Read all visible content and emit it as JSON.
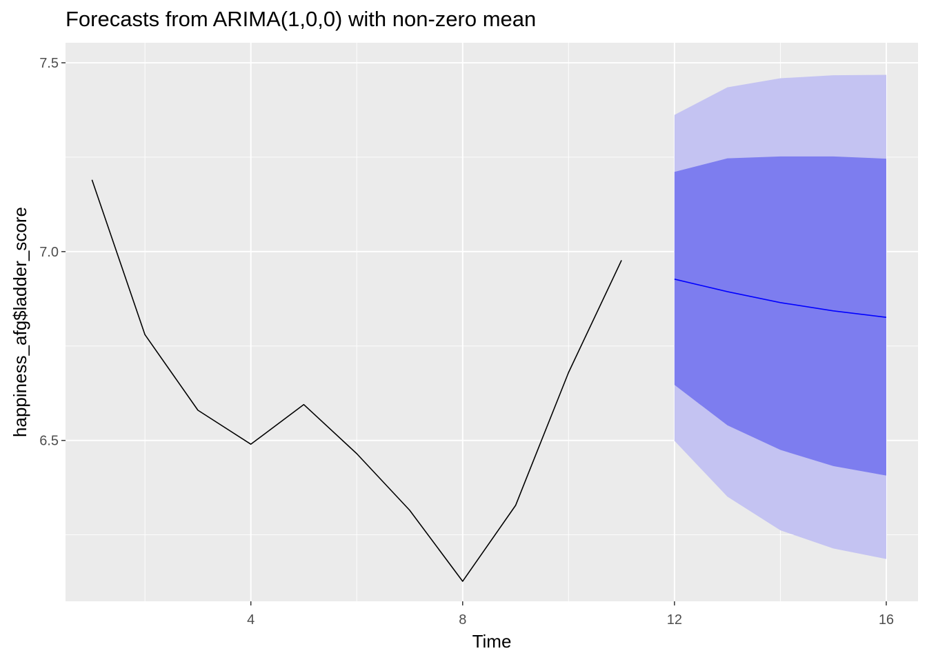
{
  "chart_data": {
    "type": "line",
    "title": "Forecasts from ARIMA(1,0,0) with non-zero mean",
    "xlabel": "Time",
    "ylabel": "happiness_afg$ladder_score",
    "xlim": [
      0.5,
      16.6
    ],
    "ylim": [
      6.074,
      7.553
    ],
    "x_ticks": [
      4,
      8,
      12,
      16
    ],
    "x_tick_labels": [
      "4",
      "8",
      "12",
      "16"
    ],
    "y_ticks": [
      6.5,
      7.0,
      7.5
    ],
    "y_tick_labels": [
      "6.5",
      "7.0",
      "7.5"
    ],
    "grid": true,
    "series": [
      {
        "role": "observed",
        "color": "#000000",
        "x": [
          1,
          2,
          3,
          4,
          5,
          6,
          7,
          8,
          9,
          10,
          11
        ],
        "y": [
          7.19,
          6.78,
          6.58,
          6.49,
          6.595,
          6.465,
          6.315,
          6.127,
          6.328,
          6.68,
          6.977
        ]
      },
      {
        "role": "forecast",
        "color": "#0000ff",
        "x": [
          12,
          13,
          14,
          15,
          16
        ],
        "y": [
          6.927,
          6.894,
          6.865,
          6.843,
          6.826
        ]
      }
    ],
    "intervals": [
      {
        "level": "95",
        "color": "#c4c3f2",
        "x": [
          12,
          13,
          14,
          15,
          16
        ],
        "lower": [
          6.499,
          6.351,
          6.262,
          6.214,
          6.186
        ],
        "upper": [
          7.362,
          7.435,
          7.459,
          7.467,
          7.468
        ]
      },
      {
        "level": "80",
        "color": "#7d7def",
        "x": [
          12,
          13,
          14,
          15,
          16
        ],
        "lower": [
          6.647,
          6.54,
          6.475,
          6.432,
          6.407
        ],
        "upper": [
          7.211,
          7.247,
          7.252,
          7.252,
          7.246
        ]
      }
    ]
  },
  "colors": {
    "panel_background": "#ebebeb",
    "grid_major": "#ffffff",
    "tick_text": "#4d4d4d"
  }
}
